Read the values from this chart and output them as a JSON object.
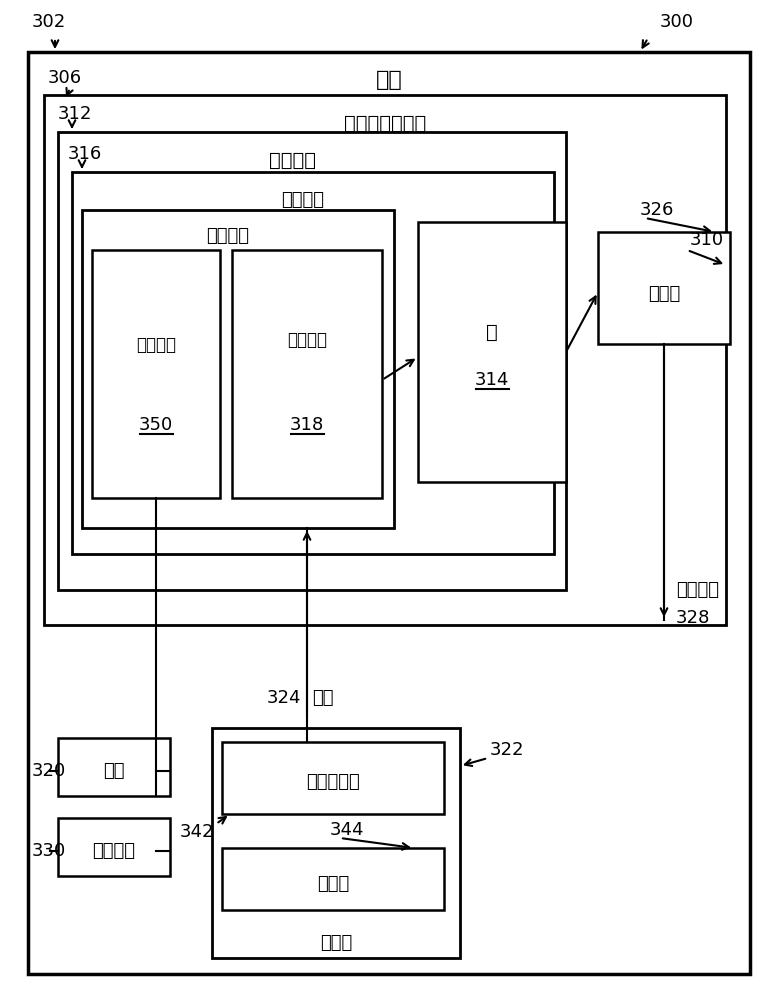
{
  "bg_color": "#ffffff",
  "ref_302": "302",
  "ref_300": "300",
  "ref_306": "306",
  "ref_310": "310",
  "ref_312": "312",
  "ref_316": "316",
  "ref_314": "314",
  "ref_318": "318",
  "ref_326": "326",
  "ref_350": "350",
  "ref_320": "320",
  "ref_330": "330",
  "ref_322": "322",
  "ref_342": "342",
  "ref_344": "344",
  "ref_324": "324",
  "ref_328": "328",
  "label_platform": "平台",
  "label_aero": "空气动力学元件",
  "label_actuator": "致动单元",
  "label_outer": "外部元件",
  "label_inner": "内部元件",
  "label_rotation": "旋转速度",
  "label_spiral": "螺旋形槽",
  "label_slot": "槽",
  "label_jet": "喷射槽",
  "label_airjet": "空气射流",
  "label_airflow": "气流",
  "label_motor": "马达",
  "label_control": "控制单元",
  "label_compressor": "空气压缩机",
  "label_engine": "发动机",
  "label_fluid": "流体源"
}
